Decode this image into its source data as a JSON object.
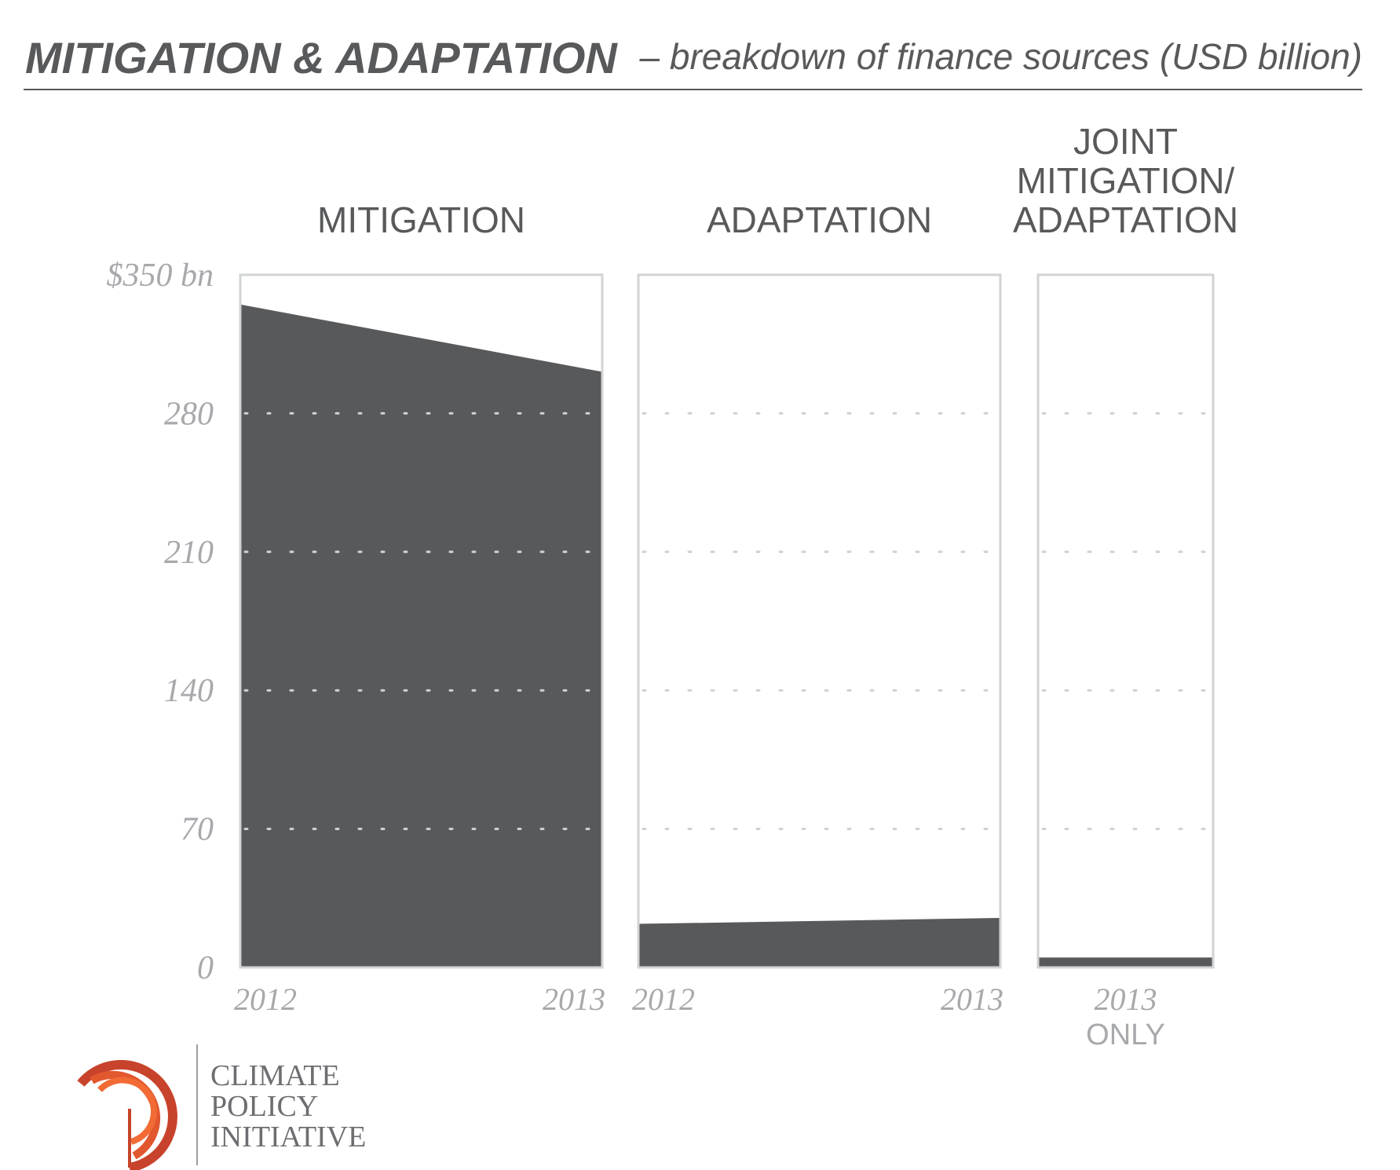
{
  "header": {
    "title": "MITIGATION & ADAPTATION",
    "subtitle": "– breakdown of finance sources (USD billion)"
  },
  "chart_data": {
    "type": "area",
    "ylim": [
      0,
      350
    ],
    "y_ticks": [
      {
        "value": 350,
        "label": "$350 bn"
      },
      {
        "value": 280,
        "label": "280"
      },
      {
        "value": 210,
        "label": "210"
      },
      {
        "value": 140,
        "label": "140"
      },
      {
        "value": 70,
        "label": "70"
      },
      {
        "value": 0,
        "label": "0"
      }
    ],
    "grid": "dotted",
    "panels": [
      {
        "title_lines": [
          "MITIGATION"
        ],
        "x": [
          "2012",
          "2013"
        ],
        "x_labels": [
          "2012",
          "2013"
        ],
        "x_note": "",
        "values": [
          335,
          301
        ]
      },
      {
        "title_lines": [
          "ADAPTATION"
        ],
        "x": [
          "2012",
          "2013"
        ],
        "x_labels": [
          "2012",
          "2013"
        ],
        "x_note": "",
        "values": [
          22,
          25
        ]
      },
      {
        "title_lines": [
          "JOINT",
          "MITIGATION/",
          "ADAPTATION"
        ],
        "x": [
          "2013"
        ],
        "x_labels": [
          "2013"
        ],
        "x_note": "ONLY",
        "values": [
          5
        ]
      }
    ]
  },
  "logo": {
    "lines": [
      "CLIMATE",
      "POLICY",
      "INITIATIVE"
    ],
    "colors": [
      "#c8432b",
      "#e2582e",
      "#f26b35"
    ]
  },
  "colors": {
    "fill": "#58595b",
    "frame": "#d1d3d4",
    "rule": "#58595b",
    "tick_text": "#a7a9ac"
  }
}
